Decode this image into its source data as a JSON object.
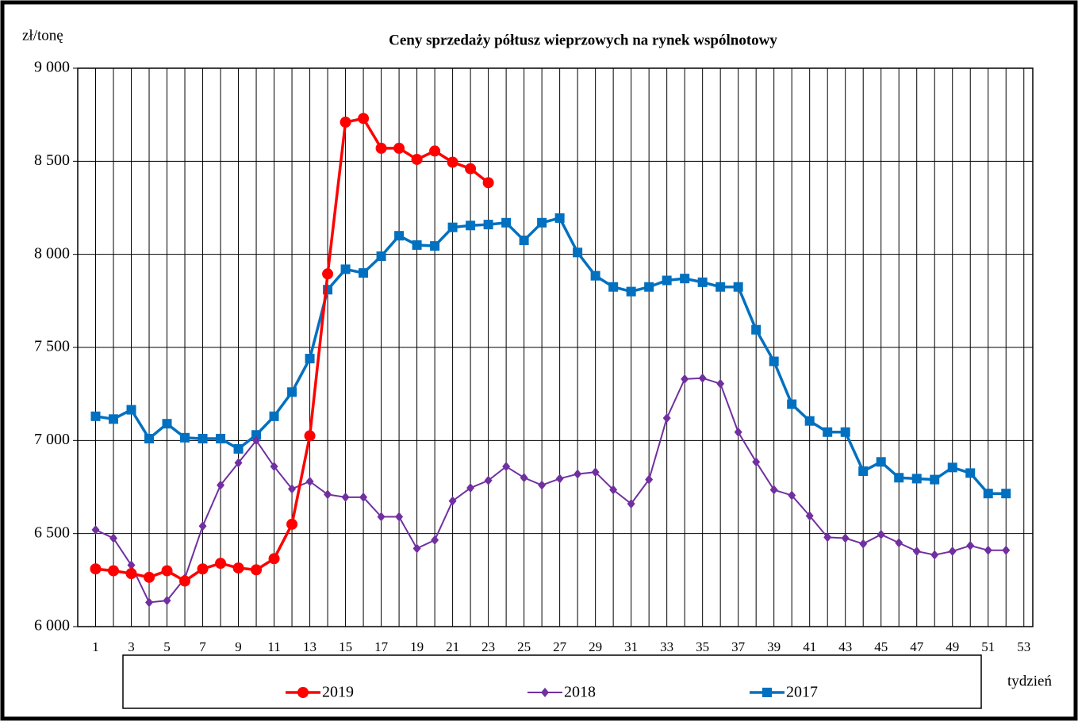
{
  "chart_data": {
    "type": "line",
    "title": "Ceny sprzedaży półtusz wieprzowych  na rynek wspólnotowy",
    "y_label": "zł/tonę",
    "x_label": "tydzień",
    "categories": [
      1,
      null,
      3,
      null,
      5,
      null,
      7,
      null,
      9,
      null,
      11,
      null,
      13,
      null,
      15,
      null,
      17,
      null,
      19,
      null,
      21,
      null,
      23,
      null,
      25,
      null,
      27,
      null,
      29,
      null,
      31,
      null,
      33,
      null,
      35,
      null,
      37,
      null,
      39,
      null,
      41,
      null,
      43,
      null,
      45,
      null,
      47,
      null,
      49,
      null,
      51,
      null,
      53
    ],
    "ylim": [
      6000,
      9000
    ],
    "yticks": [
      {
        "value": 6000,
        "label": "6 000"
      },
      {
        "value": 6500,
        "label": "6 500"
      },
      {
        "value": 7000,
        "label": "7 000"
      },
      {
        "value": 7500,
        "label": "7 500"
      },
      {
        "value": 8000,
        "label": "8 000"
      },
      {
        "value": 8500,
        "label": "8 500"
      },
      {
        "value": 9000,
        "label": "9 000"
      }
    ],
    "grid": true,
    "series": [
      {
        "name": "2019",
        "color": "#ff0000",
        "marker": "circle",
        "values": [
          6310,
          6300,
          6285,
          6265,
          6300,
          6245,
          6310,
          6340,
          6315,
          6305,
          6365,
          6550,
          7025,
          7895,
          8710,
          8730,
          8570,
          8570,
          8510,
          8555,
          8495,
          8460,
          8385,
          null,
          null,
          null,
          null,
          null,
          null,
          null,
          null,
          null,
          null,
          null,
          null,
          null,
          null,
          null,
          null,
          null,
          null,
          null,
          null,
          null,
          null,
          null,
          null,
          null,
          null,
          null,
          null,
          null,
          null
        ]
      },
      {
        "name": "2018",
        "color": "#7030a0",
        "marker": "diamond",
        "values": [
          6520,
          6475,
          6330,
          6130,
          6140,
          6260,
          6540,
          6760,
          6880,
          7000,
          6860,
          6740,
          6780,
          6710,
          6695,
          6695,
          6590,
          6590,
          6420,
          6465,
          6675,
          6745,
          6785,
          6860,
          6800,
          6760,
          6795,
          6820,
          6830,
          6735,
          6660,
          6790,
          7120,
          7330,
          7335,
          7305,
          7045,
          6885,
          6735,
          6705,
          6595,
          6480,
          6475,
          6445,
          6495,
          6450,
          6405,
          6385,
          6405,
          6435,
          6410,
          6410,
          null
        ]
      },
      {
        "name": "2017",
        "color": "#0070c0",
        "marker": "square",
        "values": [
          7130,
          7115,
          7165,
          7010,
          7090,
          7015,
          7010,
          7010,
          6955,
          7030,
          7130,
          7260,
          7440,
          7810,
          7920,
          7900,
          7990,
          8100,
          8050,
          8045,
          8145,
          8155,
          8160,
          8170,
          8075,
          8170,
          8195,
          8010,
          7885,
          7825,
          7800,
          7825,
          7860,
          7870,
          7850,
          7825,
          7825,
          7595,
          7425,
          7195,
          7105,
          7045,
          7045,
          6835,
          6885,
          6800,
          6795,
          6790,
          6855,
          6825,
          6715,
          6715,
          null
        ]
      }
    ]
  }
}
